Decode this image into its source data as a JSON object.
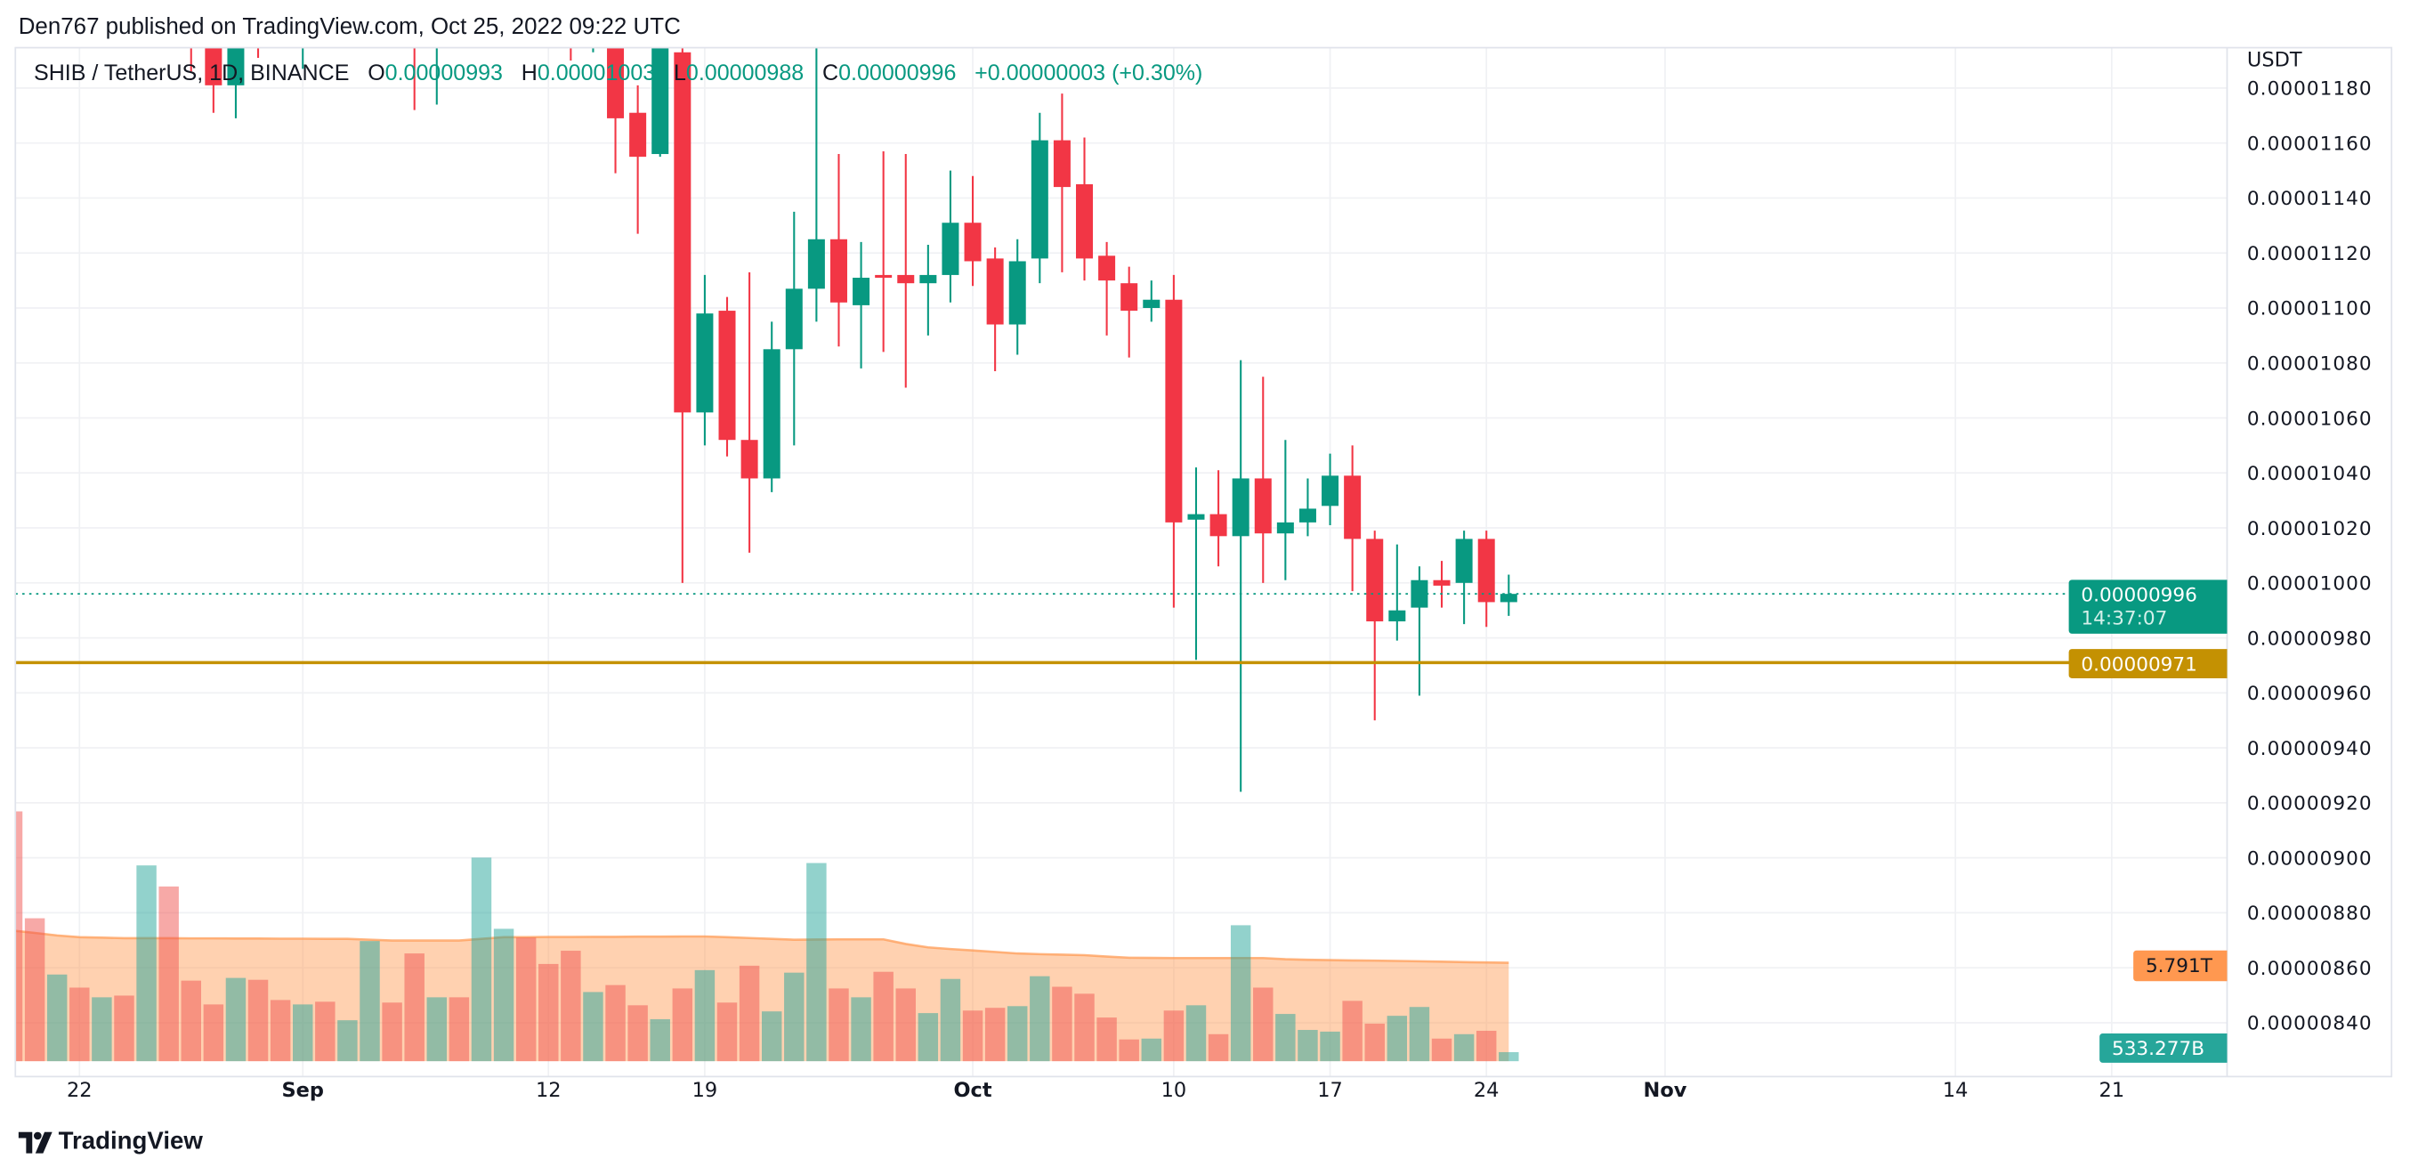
{
  "header": {
    "publisher_line": "Den767 published on TradingView.com, Oct 25, 2022 09:22 UTC"
  },
  "legend": {
    "symbol": "SHIB / TetherUS, 1D, BINANCE",
    "open_label": "O",
    "open": "0.00000993",
    "high_label": "H",
    "high": "0.00001003",
    "low_label": "L",
    "low": "0.00000988",
    "close_label": "C",
    "close": "0.00000996",
    "change": "+0.00000003 (+0.30%)"
  },
  "price_axis": {
    "unit": "USDT",
    "ticks": [
      "0.00001180",
      "0.00001160",
      "0.00001140",
      "0.00001120",
      "0.00001100",
      "0.00001080",
      "0.00001060",
      "0.00001040",
      "0.00001020",
      "0.00001000",
      "0.00000980",
      "0.00000960",
      "0.00000940",
      "0.00000920",
      "0.00000900",
      "0.00000880",
      "0.00000860",
      "0.00000840"
    ],
    "last_price_label": "0.00000996",
    "countdown": "14:37:07",
    "level_label": "0.00000971",
    "volume_ma_label": "5.791T",
    "volume_label": "533.277B"
  },
  "time_axis": {
    "ticks": [
      {
        "label": "22",
        "date": "2022-08-22"
      },
      {
        "label": "Sep",
        "date": "2022-09-01"
      },
      {
        "label": "12",
        "date": "2022-09-12"
      },
      {
        "label": "19",
        "date": "2022-09-19"
      },
      {
        "label": "Oct",
        "date": "2022-10-01"
      },
      {
        "label": "10",
        "date": "2022-10-10"
      },
      {
        "label": "17",
        "date": "2022-10-17"
      },
      {
        "label": "24",
        "date": "2022-10-24"
      },
      {
        "label": "Nov",
        "date": "2022-11-01"
      },
      {
        "label": "14",
        "date": "2022-11-14"
      },
      {
        "label": "21",
        "date": "2022-11-21"
      }
    ]
  },
  "colors": {
    "up": "#089981",
    "down": "#f23645",
    "volume_up": "#26a69a",
    "volume_down": "#ef5350",
    "volume_ma": "#ff9850",
    "level_line": "#c49102",
    "last_price_line": "#089981"
  },
  "footer": {
    "brand": "TradingView",
    "logo_icon": "tradingview-logo-icon"
  },
  "chart_data": {
    "type": "candlestick",
    "symbol": "SHIB / TetherUS",
    "interval": "1D",
    "exchange": "BINANCE",
    "ylim": [
      8.3e-06,
      1.194e-05
    ],
    "grid": true,
    "horizontal_level": 9.71e-06,
    "last_price": 9.96e-06,
    "candles": [
      {
        "date": "2022-08-27",
        "o": 1.23e-05,
        "h": 1.24e-05,
        "l": 1.186e-05,
        "c": 1.2e-05
      },
      {
        "date": "2022-08-28",
        "o": 1.215e-05,
        "h": 1.23e-05,
        "l": 1.171e-05,
        "c": 1.181e-05
      },
      {
        "date": "2022-08-29",
        "o": 1.181e-05,
        "h": 1.225e-05,
        "l": 1.169e-05,
        "c": 1.21e-05
      },
      {
        "date": "2022-08-30",
        "o": 1.215e-05,
        "h": 1.22e-05,
        "l": 1.191e-05,
        "c": 1.2e-05
      },
      {
        "date": "2022-09-01",
        "o": 1.198e-05,
        "h": 1.225e-05,
        "l": 1.187e-05,
        "c": 1.215e-05
      },
      {
        "date": "2022-09-06",
        "o": 1.22e-05,
        "h": 1.23e-05,
        "l": 1.172e-05,
        "c": 1.198e-05
      },
      {
        "date": "2022-09-07",
        "o": 1.198e-05,
        "h": 1.22e-05,
        "l": 1.174e-05,
        "c": 1.21e-05
      },
      {
        "date": "2022-09-13",
        "o": 1.215e-05,
        "h": 1.225e-05,
        "l": 1.19e-05,
        "c": 1.2e-05
      },
      {
        "date": "2022-09-14",
        "o": 1.2e-05,
        "h": 1.225e-05,
        "l": 1.193e-05,
        "c": 1.215e-05
      },
      {
        "date": "2022-09-15",
        "o": 1.215e-05,
        "h": 1.225e-05,
        "l": 1.149e-05,
        "c": 1.169e-05
      },
      {
        "date": "2022-09-16",
        "o": 1.171e-05,
        "h": 1.181e-05,
        "l": 1.127e-05,
        "c": 1.155e-05
      },
      {
        "date": "2022-09-17",
        "o": 1.156e-05,
        "h": 1.205e-05,
        "l": 1.155e-05,
        "c": 1.198e-05
      },
      {
        "date": "2022-09-18",
        "o": 1.193e-05,
        "h": 1.198e-05,
        "l": 1e-05,
        "c": 1.062e-05
      },
      {
        "date": "2022-09-19",
        "o": 1.062e-05,
        "h": 1.112e-05,
        "l": 1.05e-05,
        "c": 1.098e-05
      },
      {
        "date": "2022-09-20",
        "o": 1.099e-05,
        "h": 1.104e-05,
        "l": 1.046e-05,
        "c": 1.052e-05
      },
      {
        "date": "2022-09-21",
        "o": 1.052e-05,
        "h": 1.113e-05,
        "l": 1.011e-05,
        "c": 1.038e-05
      },
      {
        "date": "2022-09-22",
        "o": 1.038e-05,
        "h": 1.095e-05,
        "l": 1.033e-05,
        "c": 1.085e-05
      },
      {
        "date": "2022-09-23",
        "o": 1.085e-05,
        "h": 1.135e-05,
        "l": 1.05e-05,
        "c": 1.107e-05
      },
      {
        "date": "2022-09-24",
        "o": 1.107e-05,
        "h": 1.2e-05,
        "l": 1.095e-05,
        "c": 1.125e-05
      },
      {
        "date": "2022-09-25",
        "o": 1.125e-05,
        "h": 1.156e-05,
        "l": 1.086e-05,
        "c": 1.102e-05
      },
      {
        "date": "2022-09-26",
        "o": 1.101e-05,
        "h": 1.124e-05,
        "l": 1.078e-05,
        "c": 1.111e-05
      },
      {
        "date": "2022-09-27",
        "o": 1.112e-05,
        "h": 1.157e-05,
        "l": 1.084e-05,
        "c": 1.111e-05
      },
      {
        "date": "2022-09-28",
        "o": 1.112e-05,
        "h": 1.156e-05,
        "l": 1.071e-05,
        "c": 1.109e-05
      },
      {
        "date": "2022-09-29",
        "o": 1.109e-05,
        "h": 1.123e-05,
        "l": 1.09e-05,
        "c": 1.112e-05
      },
      {
        "date": "2022-09-30",
        "o": 1.112e-05,
        "h": 1.15e-05,
        "l": 1.102e-05,
        "c": 1.131e-05
      },
      {
        "date": "2022-10-01",
        "o": 1.131e-05,
        "h": 1.148e-05,
        "l": 1.108e-05,
        "c": 1.117e-05
      },
      {
        "date": "2022-10-02",
        "o": 1.118e-05,
        "h": 1.122e-05,
        "l": 1.077e-05,
        "c": 1.094e-05
      },
      {
        "date": "2022-10-03",
        "o": 1.094e-05,
        "h": 1.125e-05,
        "l": 1.083e-05,
        "c": 1.117e-05
      },
      {
        "date": "2022-10-04",
        "o": 1.118e-05,
        "h": 1.171e-05,
        "l": 1.109e-05,
        "c": 1.161e-05
      },
      {
        "date": "2022-10-05",
        "o": 1.161e-05,
        "h": 1.178e-05,
        "l": 1.113e-05,
        "c": 1.144e-05
      },
      {
        "date": "2022-10-06",
        "o": 1.145e-05,
        "h": 1.162e-05,
        "l": 1.11e-05,
        "c": 1.118e-05
      },
      {
        "date": "2022-10-07",
        "o": 1.119e-05,
        "h": 1.124e-05,
        "l": 1.09e-05,
        "c": 1.11e-05
      },
      {
        "date": "2022-10-08",
        "o": 1.109e-05,
        "h": 1.115e-05,
        "l": 1.082e-05,
        "c": 1.099e-05
      },
      {
        "date": "2022-10-09",
        "o": 1.1e-05,
        "h": 1.11e-05,
        "l": 1.095e-05,
        "c": 1.103e-05
      },
      {
        "date": "2022-10-10",
        "o": 1.103e-05,
        "h": 1.112e-05,
        "l": 9.91e-06,
        "c": 1.022e-05
      },
      {
        "date": "2022-10-11",
        "o": 1.023e-05,
        "h": 1.042e-05,
        "l": 9.72e-06,
        "c": 1.025e-05
      },
      {
        "date": "2022-10-12",
        "o": 1.025e-05,
        "h": 1.041e-05,
        "l": 1.006e-05,
        "c": 1.017e-05
      },
      {
        "date": "2022-10-13",
        "o": 1.017e-05,
        "h": 1.081e-05,
        "l": 9.24e-06,
        "c": 1.038e-05
      },
      {
        "date": "2022-10-14",
        "o": 1.038e-05,
        "h": 1.075e-05,
        "l": 1e-05,
        "c": 1.018e-05
      },
      {
        "date": "2022-10-15",
        "o": 1.018e-05,
        "h": 1.052e-05,
        "l": 1.001e-05,
        "c": 1.022e-05
      },
      {
        "date": "2022-10-16",
        "o": 1.022e-05,
        "h": 1.038e-05,
        "l": 1.017e-05,
        "c": 1.027e-05
      },
      {
        "date": "2022-10-17",
        "o": 1.028e-05,
        "h": 1.047e-05,
        "l": 1.021e-05,
        "c": 1.039e-05
      },
      {
        "date": "2022-10-18",
        "o": 1.039e-05,
        "h": 1.05e-05,
        "l": 9.97e-06,
        "c": 1.016e-05
      },
      {
        "date": "2022-10-19",
        "o": 1.016e-05,
        "h": 1.019e-05,
        "l": 9.5e-06,
        "c": 9.86e-06
      },
      {
        "date": "2022-10-20",
        "o": 9.86e-06,
        "h": 1.014e-05,
        "l": 9.79e-06,
        "c": 9.9e-06
      },
      {
        "date": "2022-10-21",
        "o": 9.91e-06,
        "h": 1.006e-05,
        "l": 9.59e-06,
        "c": 1.001e-05
      },
      {
        "date": "2022-10-22",
        "o": 1.001e-05,
        "h": 1.008e-05,
        "l": 9.91e-06,
        "c": 9.99e-06
      },
      {
        "date": "2022-10-23",
        "o": 1e-05,
        "h": 1.019e-05,
        "l": 9.85e-06,
        "c": 1.016e-05
      },
      {
        "date": "2022-10-24",
        "o": 1.016e-05,
        "h": 1.019e-05,
        "l": 9.84e-06,
        "c": 9.93e-06
      },
      {
        "date": "2022-10-25",
        "o": 9.93e-06,
        "h": 1.003e-05,
        "l": 9.88e-06,
        "c": 9.96e-06
      }
    ],
    "volume": {
      "start_date": "2022-08-19",
      "values": [
        14700000000000.0,
        8410000000000.0,
        5100000000000.0,
        4330000000000.0,
        3760000000000.0,
        3860000000000.0,
        11520000000000.0,
        10280000000000.0,
        4740000000000.0,
        3340000000000.0,
        4900000000000.0,
        4790000000000.0,
        3600000000000.0,
        3340000000000.0,
        3500000000000.0,
        2410000000000.0,
        7070000000000.0,
        3450000000000.0,
        6340000000000.0,
        3760000000000.0,
        3760000000000.0,
        11980000000000.0,
        7790000000000.0,
        7280000000000.0,
        5720000000000.0,
        6500000000000.0,
        4070000000000.0,
        4480000000000.0,
        3290000000000.0,
        2470000000000.0,
        4280000000000.0,
        5360000000000.0,
        3450000000000.0,
        5620000000000.0,
        2930000000000.0,
        5210000000000.0,
        11660000000000.0,
        4280000000000.0,
        3760000000000.0,
        5260000000000.0,
        4280000000000.0,
        2830000000000.0,
        4840000000000.0,
        2980000000000.0,
        3140000000000.0,
        3240000000000.0,
        5000000000000.0,
        4380000000000.0,
        3970000000000.0,
        2570000000000.0,
        1280000000000.0,
        1330000000000.0,
        2980000000000.0,
        3290000000000.0,
        1590000000000.0,
        8000000000000.0,
        4330000000000.0,
        2780000000000.0,
        1840000000000.0,
        1740000000000.0,
        3550000000000.0,
        2210000000000.0,
        2670000000000.0,
        3190000000000.0,
        1330000000000.0,
        1590000000000.0,
        1790000000000.0,
        533277000000.0
      ],
      "direction": [
        "down",
        "down",
        "up",
        "down",
        "up",
        "down",
        "up",
        "down",
        "down",
        "down",
        "up",
        "down",
        "down",
        "up",
        "down",
        "up",
        "up",
        "down",
        "down",
        "up",
        "down",
        "up",
        "up",
        "down",
        "down",
        "down",
        "up",
        "down",
        "down",
        "up",
        "down",
        "up",
        "down",
        "down",
        "up",
        "up",
        "up",
        "down",
        "up",
        "down",
        "down",
        "up",
        "up",
        "down",
        "down",
        "up",
        "up",
        "down",
        "down",
        "down",
        "down",
        "up",
        "down",
        "up",
        "down",
        "up",
        "down",
        "up",
        "up",
        "up",
        "down",
        "down",
        "up",
        "up",
        "down",
        "up",
        "down",
        "up"
      ],
      "ma": [
        7690000000000.0,
        7550000000000.0,
        7400000000000.0,
        7300000000000.0,
        7270000000000.0,
        7240000000000.0,
        7240000000000.0,
        7240000000000.0,
        7230000000000.0,
        7230000000000.0,
        7220000000000.0,
        7220000000000.0,
        7210000000000.0,
        7210000000000.0,
        7200000000000.0,
        7200000000000.0,
        7150000000000.0,
        7100000000000.0,
        7100000000000.0,
        7100000000000.0,
        7100000000000.0,
        7200000000000.0,
        7300000000000.0,
        7300000000000.0,
        7310000000000.0,
        7310000000000.0,
        7320000000000.0,
        7320000000000.0,
        7330000000000.0,
        7330000000000.0,
        7340000000000.0,
        7340000000000.0,
        7300000000000.0,
        7250000000000.0,
        7200000000000.0,
        7150000000000.0,
        7160000000000.0,
        7170000000000.0,
        7170000000000.0,
        7170000000000.0,
        6900000000000.0,
        6700000000000.0,
        6600000000000.0,
        6520000000000.0,
        6430000000000.0,
        6340000000000.0,
        6300000000000.0,
        6270000000000.0,
        6240000000000.0,
        6160000000000.0,
        6090000000000.0,
        6080000000000.0,
        6070000000000.0,
        6070000000000.0,
        6070000000000.0,
        6070000000000.0,
        6070000000000.0,
        6000000000000.0,
        5970000000000.0,
        5950000000000.0,
        5930000000000.0,
        5920000000000.0,
        5900000000000.0,
        5880000000000.0,
        5860000000000.0,
        5830000000000.0,
        5810000000000.0,
        5791000000000.0
      ]
    }
  }
}
